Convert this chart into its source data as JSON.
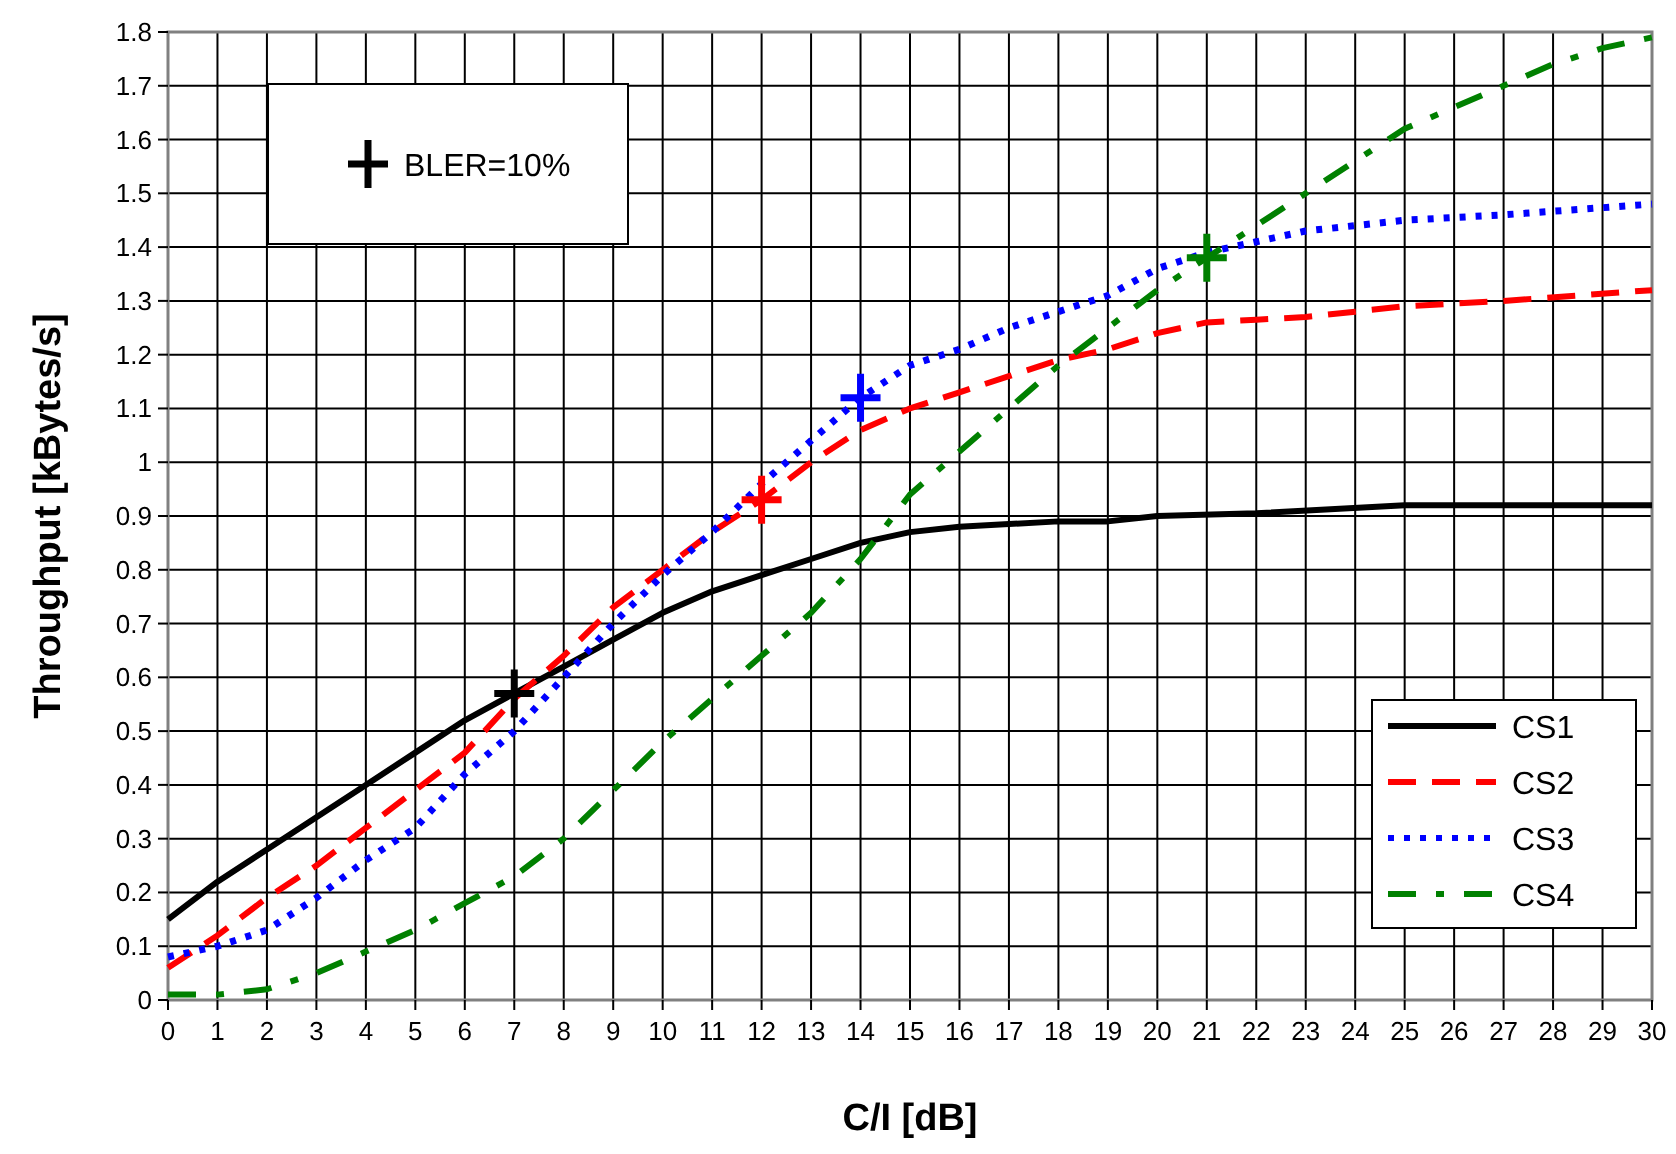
{
  "chart_data": {
    "type": "line",
    "xlabel": "C/I [dB]",
    "ylabel": "Throughput [kBytes/s]",
    "xlim": [
      0,
      30
    ],
    "xticks": [
      0,
      1,
      2,
      3,
      4,
      5,
      6,
      7,
      8,
      9,
      10,
      11,
      12,
      13,
      14,
      15,
      16,
      17,
      18,
      19,
      20,
      21,
      22,
      23,
      24,
      25,
      26,
      27,
      28,
      29,
      30
    ],
    "ylim": [
      0,
      1.8
    ],
    "yticks": [
      0,
      0.1,
      0.2,
      0.3,
      0.4,
      0.5,
      0.6,
      0.7,
      0.8,
      0.9,
      1,
      1.1,
      1.2,
      1.3,
      1.4,
      1.5,
      1.6,
      1.7,
      1.8
    ],
    "grid": true,
    "legend": "bottom right",
    "series": [
      {
        "name": "CS1",
        "color": "#000000",
        "line_style": "solid",
        "x": [
          0,
          1,
          2,
          3,
          4,
          5,
          6,
          7,
          8,
          9,
          10,
          11,
          12,
          13,
          14,
          15,
          16,
          17,
          18,
          19,
          20,
          22,
          25,
          30
        ],
        "values": [
          0.15,
          0.22,
          0.28,
          0.34,
          0.4,
          0.46,
          0.52,
          0.57,
          0.62,
          0.67,
          0.72,
          0.76,
          0.79,
          0.82,
          0.85,
          0.87,
          0.88,
          0.885,
          0.89,
          0.89,
          0.9,
          0.905,
          0.92,
          0.92
        ]
      },
      {
        "name": "CS2",
        "color": "#ff0000",
        "line_style": "dashed",
        "x": [
          0,
          1,
          2,
          3,
          4,
          5,
          6,
          7,
          8,
          9,
          10,
          11,
          12,
          13,
          14,
          15,
          16,
          17,
          18,
          19,
          20,
          21,
          22,
          23,
          24,
          25,
          27,
          30
        ],
        "values": [
          0.06,
          0.12,
          0.19,
          0.25,
          0.32,
          0.39,
          0.46,
          0.56,
          0.64,
          0.73,
          0.8,
          0.87,
          0.93,
          1.0,
          1.06,
          1.1,
          1.13,
          1.16,
          1.19,
          1.21,
          1.24,
          1.26,
          1.265,
          1.27,
          1.28,
          1.29,
          1.3,
          1.32
        ]
      },
      {
        "name": "CS3",
        "color": "#0000ff",
        "line_style": "dotted",
        "x": [
          0,
          1,
          2,
          3,
          4,
          5,
          6,
          7,
          8,
          9,
          10,
          11,
          12,
          13,
          14,
          15,
          16,
          17,
          18,
          19,
          20,
          21,
          22,
          23,
          24,
          25,
          27,
          30
        ],
        "values": [
          0.08,
          0.1,
          0.13,
          0.19,
          0.26,
          0.32,
          0.42,
          0.5,
          0.6,
          0.7,
          0.79,
          0.87,
          0.96,
          1.04,
          1.12,
          1.18,
          1.21,
          1.25,
          1.28,
          1.31,
          1.36,
          1.39,
          1.41,
          1.43,
          1.44,
          1.45,
          1.46,
          1.48
        ]
      },
      {
        "name": "CS4",
        "color": "#008000",
        "line_style": "dashdot",
        "x": [
          0,
          1,
          2,
          3,
          4,
          5,
          6,
          7,
          8,
          9,
          10,
          11,
          12,
          13,
          14,
          15,
          16,
          17,
          18,
          19,
          20,
          21,
          22,
          23,
          24,
          25,
          26,
          27,
          28,
          29,
          30
        ],
        "values": [
          0.01,
          0.01,
          0.02,
          0.05,
          0.09,
          0.13,
          0.18,
          0.23,
          0.3,
          0.39,
          0.48,
          0.56,
          0.64,
          0.72,
          0.82,
          0.94,
          1.02,
          1.1,
          1.18,
          1.25,
          1.32,
          1.38,
          1.44,
          1.5,
          1.56,
          1.62,
          1.66,
          1.7,
          1.74,
          1.77,
          1.79
        ]
      },
      {
        "name": "BLER=10%",
        "type": "scatter",
        "marker": "cross",
        "color": "#000000",
        "colors": [
          "#000000",
          "#ff0000",
          "#0000ff",
          "#008000"
        ],
        "x": [
          7,
          12,
          14,
          21
        ],
        "values": [
          0.57,
          0.93,
          1.12,
          1.38
        ]
      }
    ]
  }
}
